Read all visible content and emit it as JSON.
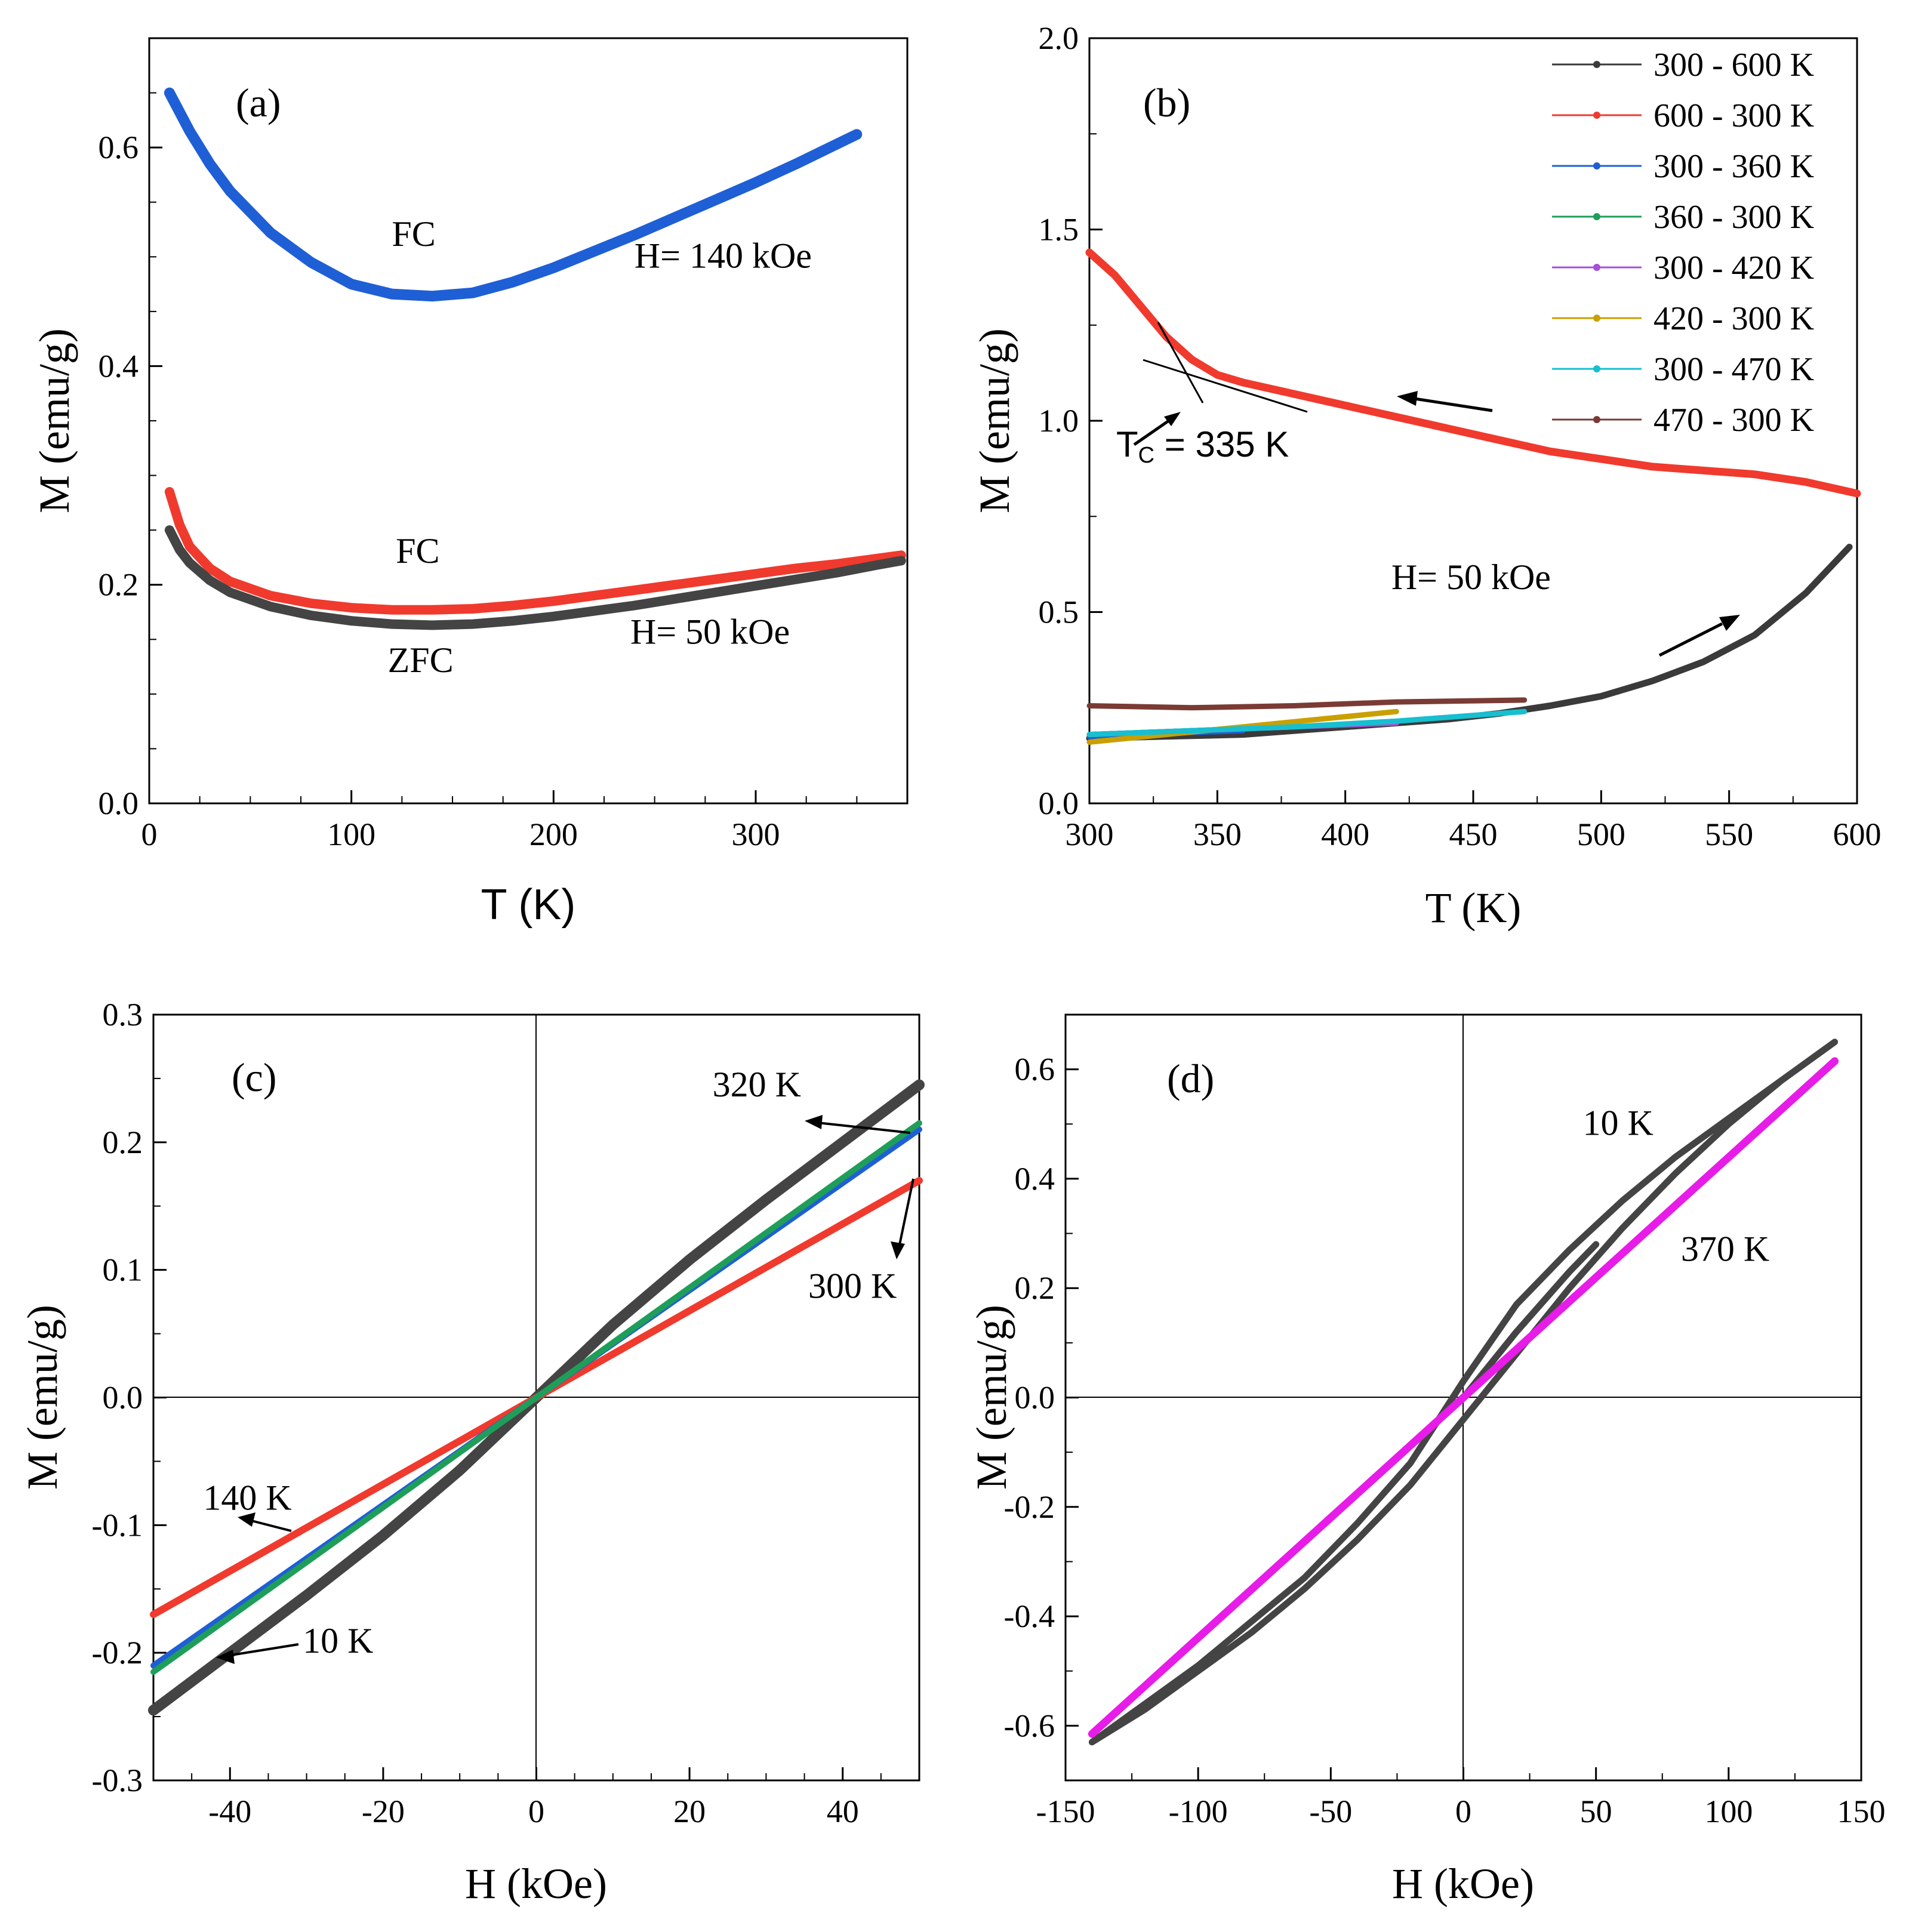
{
  "chart_data": [
    {
      "panel_label": "(a)",
      "type": "line",
      "xlabel": "T (K)",
      "ylabel": "M (emu/g)",
      "xlim": [
        0,
        375
      ],
      "ylim": [
        0,
        0.7
      ],
      "xticks": [
        "0",
        "100",
        "200",
        "300"
      ],
      "yticks": [
        "0.0",
        "0.2",
        "0.4",
        "0.6"
      ],
      "series": [
        {
          "name": "FC 140 kOe",
          "color": "#1f5fd6",
          "x": [
            10,
            20,
            30,
            40,
            60,
            80,
            100,
            120,
            140,
            160,
            180,
            200,
            220,
            240,
            260,
            280,
            300,
            320,
            340,
            350
          ],
          "y": [
            0.65,
            0.615,
            0.585,
            0.56,
            0.522,
            0.495,
            0.475,
            0.466,
            0.464,
            0.467,
            0.477,
            0.49,
            0.505,
            0.52,
            0.536,
            0.552,
            0.568,
            0.585,
            0.603,
            0.612
          ]
        },
        {
          "name": "FC 50 kOe",
          "color": "#f03a2e",
          "x": [
            10,
            15,
            20,
            30,
            40,
            60,
            80,
            100,
            120,
            140,
            160,
            180,
            200,
            220,
            240,
            260,
            280,
            300,
            320,
            340,
            360,
            372
          ],
          "y": [
            0.285,
            0.255,
            0.235,
            0.215,
            0.203,
            0.19,
            0.183,
            0.179,
            0.177,
            0.177,
            0.178,
            0.181,
            0.185,
            0.19,
            0.195,
            0.2,
            0.205,
            0.21,
            0.215,
            0.219,
            0.224,
            0.227
          ]
        },
        {
          "name": "ZFC 50 kOe",
          "color": "#444444",
          "x": [
            10,
            15,
            20,
            30,
            40,
            60,
            80,
            100,
            120,
            140,
            160,
            180,
            200,
            220,
            240,
            260,
            280,
            300,
            320,
            340,
            360,
            372
          ],
          "y": [
            0.25,
            0.232,
            0.22,
            0.204,
            0.193,
            0.18,
            0.172,
            0.167,
            0.164,
            0.163,
            0.164,
            0.167,
            0.171,
            0.176,
            0.181,
            0.187,
            0.193,
            0.199,
            0.205,
            0.211,
            0.218,
            0.222
          ]
        }
      ],
      "annotations": [
        {
          "text": "FC",
          "x": 120,
          "y": 0.51
        },
        {
          "text": "H= 140 kOe",
          "x": 240,
          "y": 0.49
        },
        {
          "text": "FC",
          "x": 122,
          "y": 0.22
        },
        {
          "text": "H= 50 kOe",
          "x": 238,
          "y": 0.146
        },
        {
          "text": "ZFC",
          "x": 118,
          "y": 0.12
        }
      ]
    },
    {
      "panel_label": "(b)",
      "type": "line",
      "xlabel": "T (K)",
      "ylabel": "M (emu/g)",
      "xlim": [
        300,
        600
      ],
      "ylim": [
        0,
        2.0
      ],
      "xticks": [
        "300",
        "350",
        "400",
        "450",
        "500",
        "550",
        "600"
      ],
      "yticks": [
        "0.0",
        "0.5",
        "1.0",
        "1.5",
        "2.0"
      ],
      "series": [
        {
          "name": "300 - 600 K",
          "color": "#3a3a3a",
          "x": [
            300,
            330,
            360,
            380,
            400,
            420,
            440,
            460,
            480,
            500,
            520,
            540,
            560,
            580,
            597
          ],
          "y": [
            0.17,
            0.175,
            0.18,
            0.19,
            0.2,
            0.21,
            0.22,
            0.235,
            0.255,
            0.28,
            0.32,
            0.37,
            0.44,
            0.55,
            0.67
          ]
        },
        {
          "name": "600 - 300 K",
          "color": "#f03a2e",
          "x": [
            300,
            310,
            320,
            330,
            340,
            350,
            360,
            380,
            400,
            420,
            440,
            460,
            480,
            500,
            520,
            540,
            560,
            580,
            600
          ],
          "y": [
            1.44,
            1.38,
            1.3,
            1.22,
            1.16,
            1.12,
            1.1,
            1.07,
            1.04,
            1.01,
            0.98,
            0.95,
            0.92,
            0.9,
            0.88,
            0.87,
            0.86,
            0.84,
            0.81
          ]
        },
        {
          "name": "300 - 360 K",
          "color": "#1f5fd6",
          "x": [
            300,
            320,
            340,
            360
          ],
          "y": [
            0.175,
            0.18,
            0.185,
            0.19
          ]
        },
        {
          "name": "360 - 300 K",
          "color": "#1f9e5a",
          "x": [
            300,
            320,
            340,
            360
          ],
          "y": [
            0.18,
            0.185,
            0.19,
            0.195
          ]
        },
        {
          "name": "300 - 420 K",
          "color": "#a64fd8",
          "x": [
            300,
            340,
            380,
            420
          ],
          "y": [
            0.18,
            0.19,
            0.2,
            0.21
          ]
        },
        {
          "name": "420 - 300 K",
          "color": "#c9a000",
          "x": [
            300,
            330,
            360,
            390,
            420
          ],
          "y": [
            0.16,
            0.18,
            0.2,
            0.22,
            0.24
          ]
        },
        {
          "name": "300 - 470 K",
          "color": "#17bfcf",
          "x": [
            300,
            340,
            380,
            420,
            470
          ],
          "y": [
            0.18,
            0.19,
            0.2,
            0.215,
            0.24
          ]
        },
        {
          "name": "470 - 300 K",
          "color": "#7a3b34",
          "x": [
            300,
            340,
            380,
            420,
            470
          ],
          "y": [
            0.255,
            0.25,
            0.255,
            0.265,
            0.27
          ]
        }
      ],
      "annotations": [
        {
          "text": "T",
          "sub": "C",
          "rest": " = 335 K",
          "x": 310,
          "y": 0.92
        },
        {
          "text": "H= 50 kOe",
          "x": 418,
          "y": 0.56
        }
      ]
    },
    {
      "panel_label": "(c)",
      "type": "line",
      "xlabel": "H (kOe)",
      "ylabel": "M (emu/g)",
      "xlim": [
        -50,
        50
      ],
      "ylim": [
        -0.3,
        0.3
      ],
      "xticks": [
        "-40",
        "-20",
        "0",
        "20",
        "40"
      ],
      "yticks": [
        "-0.3",
        "-0.2",
        "-0.1",
        "0.0",
        "0.1",
        "0.2",
        "0.3"
      ],
      "series": [
        {
          "name": "10 K",
          "color": "#444444",
          "x": [
            -50,
            -40,
            -30,
            -20,
            -10,
            0,
            10,
            20,
            30,
            40,
            50
          ],
          "y": [
            -0.245,
            -0.2,
            -0.155,
            -0.108,
            -0.057,
            0,
            0.057,
            0.108,
            0.155,
            0.2,
            0.245
          ]
        },
        {
          "name": "140 K",
          "color": "#f03a2e",
          "x": [
            -50,
            50
          ],
          "y": [
            -0.17,
            0.17
          ]
        },
        {
          "name": "300 K",
          "color": "#1f5fd6",
          "x": [
            -50,
            50
          ],
          "y": [
            -0.21,
            0.21
          ]
        },
        {
          "name": "320 K",
          "color": "#1f9e5a",
          "x": [
            -50,
            50
          ],
          "y": [
            -0.215,
            0.215
          ]
        }
      ],
      "annotations": [
        {
          "text": "320 K",
          "color": "#1f9e5a",
          "x": 23,
          "y": 0.236
        },
        {
          "text": "300 K",
          "color": "#1f5fd6",
          "x": 35.5,
          "y": 0.078
        },
        {
          "text": "140 K",
          "color": "#f03a2e",
          "x": -43.5,
          "y": -0.088
        },
        {
          "text": "10 K",
          "color": "#000000",
          "x": -30.5,
          "y": -0.2
        }
      ]
    },
    {
      "panel_label": "(d)",
      "type": "line",
      "xlabel": "H (kOe)",
      "ylabel": "M (emu/g)",
      "xlim": [
        -150,
        150
      ],
      "ylim": [
        -0.7,
        0.7
      ],
      "xticks": [
        "-150",
        "-100",
        "-50",
        "0",
        "50",
        "100",
        "150"
      ],
      "yticks": [
        "-0.6",
        "-0.4",
        "-0.2",
        "0.0",
        "0.2",
        "0.4",
        "0.6"
      ],
      "series": [
        {
          "name": "10 K",
          "color": "#444444",
          "x": [
            -140,
            -120,
            -100,
            -80,
            -60,
            -40,
            -20,
            0,
            20,
            40,
            60,
            80,
            100,
            120,
            140,
            120,
            100,
            80,
            60,
            40,
            20,
            0,
            -20,
            -40,
            -60,
            -80,
            -100,
            -120,
            -140
          ],
          "y": [
            -0.63,
            -0.56,
            -0.49,
            -0.41,
            -0.33,
            -0.23,
            -0.12,
            0.03,
            0.17,
            0.27,
            0.36,
            0.44,
            0.51,
            0.58,
            0.65,
            0.58,
            0.5,
            0.41,
            0.31,
            0.2,
            0.08,
            -0.04,
            -0.16,
            -0.26,
            -0.35,
            -0.43,
            -0.5,
            -0.57,
            -0.63
          ]
        },
        {
          "name": "10 K initial",
          "color": "#444444",
          "x": [
            0,
            20,
            40,
            50
          ],
          "y": [
            0,
            0.12,
            0.23,
            0.28
          ]
        },
        {
          "name": "370 K",
          "color": "#e81ce8",
          "x": [
            -140,
            140
          ],
          "y": [
            -0.615,
            0.615
          ]
        }
      ],
      "annotations": [
        {
          "text": "10 K",
          "color": "#000000",
          "x": 45,
          "y": 0.48
        },
        {
          "text": "370 K",
          "color": "#e81ce8",
          "x": 82,
          "y": 0.25
        }
      ]
    }
  ]
}
